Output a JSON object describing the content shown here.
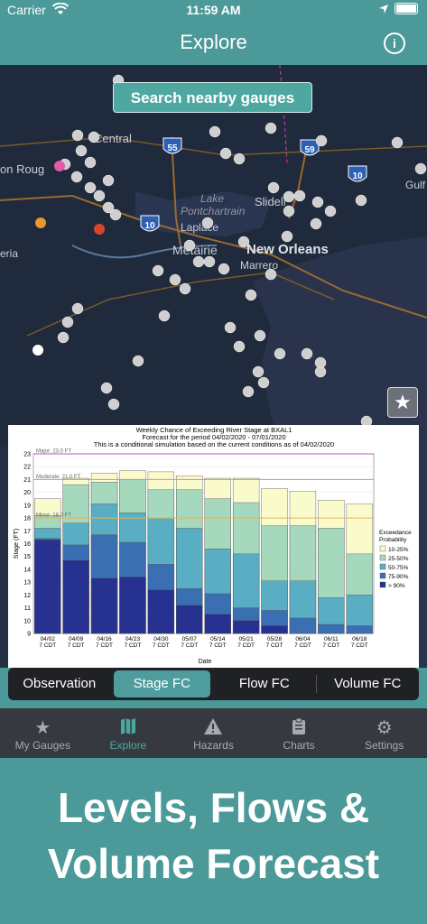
{
  "status": {
    "carrier": "Carrier",
    "time": "11:59 AM"
  },
  "nav": {
    "title": "Explore"
  },
  "map": {
    "search_label": "Search nearby gauges",
    "labels": [
      "Central",
      "on Roug",
      "Lake",
      "Pontchartrain",
      "Laplace",
      "Slidell",
      "Metairie",
      "New Orleans",
      "Marrero",
      "eria",
      "Gulf"
    ],
    "shields": [
      "55",
      "59",
      "10",
      "10"
    ]
  },
  "chart": {
    "title": "Weekly Chance of Exceeding River Stage at BXAL1",
    "subtitle": "Forecast for the period 04/02/2020 - 07/01/2020",
    "subtitle2": "This is a conditional simulation based on the current conditions as of 04/02/2020",
    "ylabel": "Stage (FT)",
    "xlabel": "Date",
    "thresholds": [
      "Major: 23.0 FT",
      "Moderate: 21.0 FT",
      "Minor: 18.0 FT"
    ],
    "legend_title": "Exceedance Probability",
    "legend": [
      "10-25%",
      "25-50%",
      "50-75%",
      "75-90%",
      "> 90%"
    ]
  },
  "chart_data": {
    "type": "bar",
    "title": "Weekly Chance of Exceeding River Stage at BXAL1",
    "subtitle": "Forecast for the period 04/02/2020 - 07/01/2020",
    "xlabel": "Date",
    "ylabel": "Stage (FT)",
    "ylim": [
      9,
      23
    ],
    "categories": [
      "04/02 7 CDT",
      "04/09 7 CDT",
      "04/16 7 CDT",
      "04/23 7 CDT",
      "04/30 7 CDT",
      "05/07 7 CDT",
      "05/14 7 CDT",
      "05/21 7 CDT",
      "05/28 7 CDT",
      "06/04 7 CDT",
      "06/11 7 CDT",
      "06/18 7 CDT"
    ],
    "series": [
      {
        "name": "> 90%",
        "values": [
          16.3,
          14.7,
          13.3,
          13.4,
          12.4,
          11.2,
          10.5,
          10.0,
          9.6,
          9.0,
          8.9,
          8.9
        ]
      },
      {
        "name": "75-90%",
        "values": [
          16.4,
          15.9,
          16.7,
          16.1,
          14.4,
          12.5,
          12.1,
          11.0,
          10.8,
          10.2,
          9.7,
          9.6
        ]
      },
      {
        "name": "50-75%",
        "values": [
          17.2,
          17.6,
          19.1,
          18.4,
          18.0,
          17.2,
          15.6,
          15.2,
          13.1,
          13.1,
          11.8,
          12.0
        ]
      },
      {
        "name": "25-50%",
        "values": [
          18.2,
          20.6,
          20.8,
          21.0,
          20.2,
          20.2,
          19.5,
          19.2,
          17.4,
          17.4,
          17.2,
          15.2
        ]
      },
      {
        "name": "10-25%",
        "values": [
          19.5,
          21.1,
          21.5,
          21.7,
          21.6,
          21.3,
          21.1,
          21.1,
          20.3,
          20.1,
          19.4,
          19.1
        ]
      }
    ],
    "thresholds": [
      {
        "name": "Major",
        "value": 23.0
      },
      {
        "name": "Moderate",
        "value": 21.0
      },
      {
        "name": "Minor",
        "value": 18.0
      }
    ]
  },
  "segments": [
    "Observation",
    "Stage FC",
    "Flow FC",
    "Volume FC"
  ],
  "tabs": [
    {
      "label": "My Gauges",
      "icon": "star-icon"
    },
    {
      "label": "Explore",
      "icon": "map-icon"
    },
    {
      "label": "Hazards",
      "icon": "warning-icon"
    },
    {
      "label": "Charts",
      "icon": "clipboard-icon"
    },
    {
      "label": "Settings",
      "icon": "gear-icon"
    }
  ],
  "promo": {
    "line1": "Levels, Flows &",
    "line2": "Volume Forecast"
  }
}
